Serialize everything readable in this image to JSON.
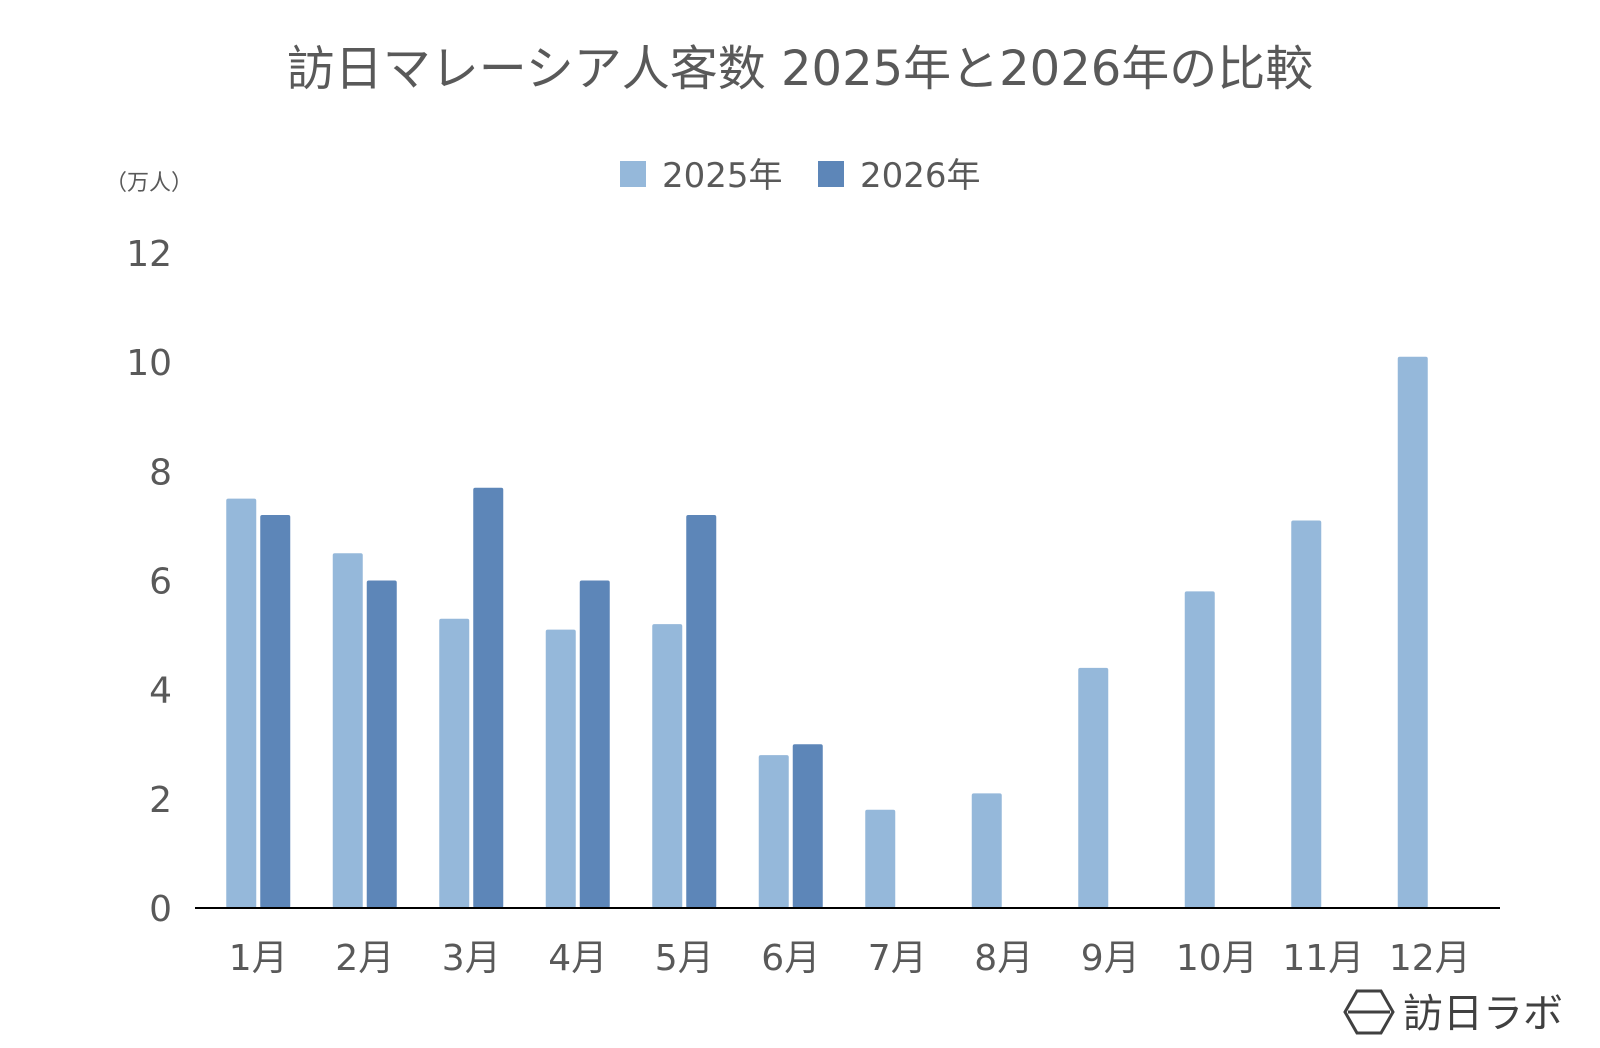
{
  "chart_data": {
    "type": "bar",
    "title": "訪日マレーシア人客数 2025年と2026年の比較",
    "unit_label": "（万人）",
    "categories": [
      "1月",
      "2月",
      "3月",
      "4月",
      "5月",
      "6月",
      "7月",
      "8月",
      "9月",
      "10月",
      "11月",
      "12月"
    ],
    "series": [
      {
        "name": "2025年",
        "color": "#95b8da",
        "values": [
          7.5,
          6.5,
          5.3,
          5.1,
          5.2,
          2.8,
          1.8,
          2.1,
          4.4,
          5.8,
          7.1,
          10.1
        ]
      },
      {
        "name": "2026年",
        "color": "#5d86b8",
        "values": [
          7.2,
          6.0,
          7.7,
          6.0,
          7.2,
          3.0,
          null,
          null,
          null,
          null,
          null,
          null
        ]
      }
    ],
    "ylim": [
      0,
      12
    ],
    "yticks": [
      0,
      2,
      4,
      6,
      8,
      10,
      12
    ],
    "grid": false,
    "legend_position": "top-center"
  },
  "brand": {
    "name": "訪日ラボ",
    "logo_icon": "hexagon-logo-icon"
  }
}
